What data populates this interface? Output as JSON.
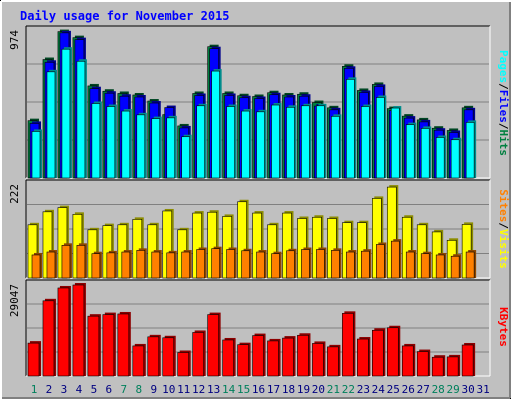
{
  "title": "Daily usage for November 2015",
  "colors": {
    "background": "#c0c0c0",
    "title": "#0000ff",
    "pages": "#00ffff",
    "files": "#0000ff",
    "hits": "#008040",
    "visits": "#ffff00",
    "sites": "#ff8000",
    "kbytes": "#ff0000",
    "weekend_label": "#00805c",
    "weekday_label": "#000080"
  },
  "chart_data": [
    {
      "type": "bar",
      "panel": "hits-files-pages",
      "y_max_label": "974",
      "ylim": [
        0,
        974
      ],
      "grid": true,
      "categories": [
        "1",
        "2",
        "3",
        "4",
        "5",
        "6",
        "7",
        "8",
        "9",
        "10",
        "11",
        "12",
        "13",
        "14",
        "15",
        "16",
        "17",
        "18",
        "19",
        "20",
        "21",
        "22",
        "23",
        "24",
        "25",
        "26",
        "27",
        "28",
        "29",
        "30",
        "31"
      ],
      "series": [
        {
          "name": "Hits",
          "values": [
            380,
            785,
            970,
            930,
            610,
            575,
            560,
            550,
            510,
            420,
            345,
            560,
            870,
            560,
            545,
            540,
            565,
            550,
            555,
            500,
            465,
            740,
            580,
            620,
            460,
            410,
            385,
            330,
            315,
            465,
            0
          ]
        },
        {
          "name": "Files",
          "values": [
            375,
            780,
            975,
            930,
            605,
            575,
            555,
            550,
            510,
            480,
            345,
            560,
            870,
            560,
            545,
            540,
            565,
            550,
            555,
            490,
            465,
            740,
            580,
            620,
            460,
            410,
            385,
            330,
            315,
            465,
            0
          ]
        },
        {
          "name": "Pages",
          "values": [
            335,
            730,
            880,
            800,
            520,
            500,
            470,
            445,
            420,
            425,
            300,
            505,
            735,
            500,
            470,
            465,
            510,
            495,
            505,
            505,
            435,
            680,
            500,
            560,
            490,
            380,
            355,
            295,
            280,
            395,
            0
          ]
        }
      ]
    },
    {
      "type": "bar",
      "panel": "visits-sites",
      "y_max_label": "222",
      "ylim": [
        0,
        222
      ],
      "grid": true,
      "categories": [
        "1",
        "2",
        "3",
        "4",
        "5",
        "6",
        "7",
        "8",
        "9",
        "10",
        "11",
        "12",
        "13",
        "14",
        "15",
        "16",
        "17",
        "18",
        "19",
        "20",
        "21",
        "22",
        "23",
        "24",
        "25",
        "26",
        "27",
        "28",
        "29",
        "30",
        "31"
      ],
      "series": [
        {
          "name": "Visits",
          "values": [
            127,
            158,
            168,
            152,
            115,
            125,
            127,
            140,
            127,
            160,
            115,
            155,
            157,
            147,
            182,
            155,
            127,
            155,
            142,
            145,
            142,
            132,
            132,
            190,
            217,
            145,
            127,
            110,
            90,
            128,
            0
          ]
        },
        {
          "name": "Sites",
          "values": [
            55,
            62,
            78,
            78,
            58,
            60,
            62,
            66,
            62,
            60,
            62,
            68,
            70,
            68,
            65,
            62,
            58,
            65,
            68,
            68,
            66,
            62,
            64,
            80,
            88,
            62,
            58,
            55,
            52,
            62,
            0
          ]
        }
      ]
    },
    {
      "type": "bar",
      "panel": "kbytes",
      "y_max_label": "29047",
      "ylim": [
        0,
        29047
      ],
      "grid": true,
      "categories": [
        "1",
        "2",
        "3",
        "4",
        "5",
        "6",
        "7",
        "8",
        "9",
        "10",
        "11",
        "12",
        "13",
        "14",
        "15",
        "16",
        "17",
        "18",
        "19",
        "20",
        "21",
        "22",
        "23",
        "24",
        "25",
        "26",
        "27",
        "28",
        "29",
        "30",
        "31"
      ],
      "series": [
        {
          "name": "KBytes",
          "values": [
            10500,
            24000,
            28100,
            29047,
            19100,
            19600,
            19800,
            9600,
            12500,
            12200,
            7500,
            13900,
            19600,
            11500,
            10000,
            12900,
            11200,
            12100,
            13000,
            10400,
            9300,
            20000,
            11800,
            14600,
            15400,
            9600,
            7800,
            6000,
            6100,
            9900,
            0
          ]
        }
      ]
    }
  ],
  "legend_top": [
    "Pages",
    "Files",
    "Hits"
  ],
  "legend_mid": [
    "Sites",
    "Visits"
  ],
  "legend_bot": [
    "KBytes"
  ],
  "legend_sep": "/",
  "weekend_days": [
    1,
    7,
    8,
    14,
    15,
    21,
    22,
    28,
    29
  ]
}
